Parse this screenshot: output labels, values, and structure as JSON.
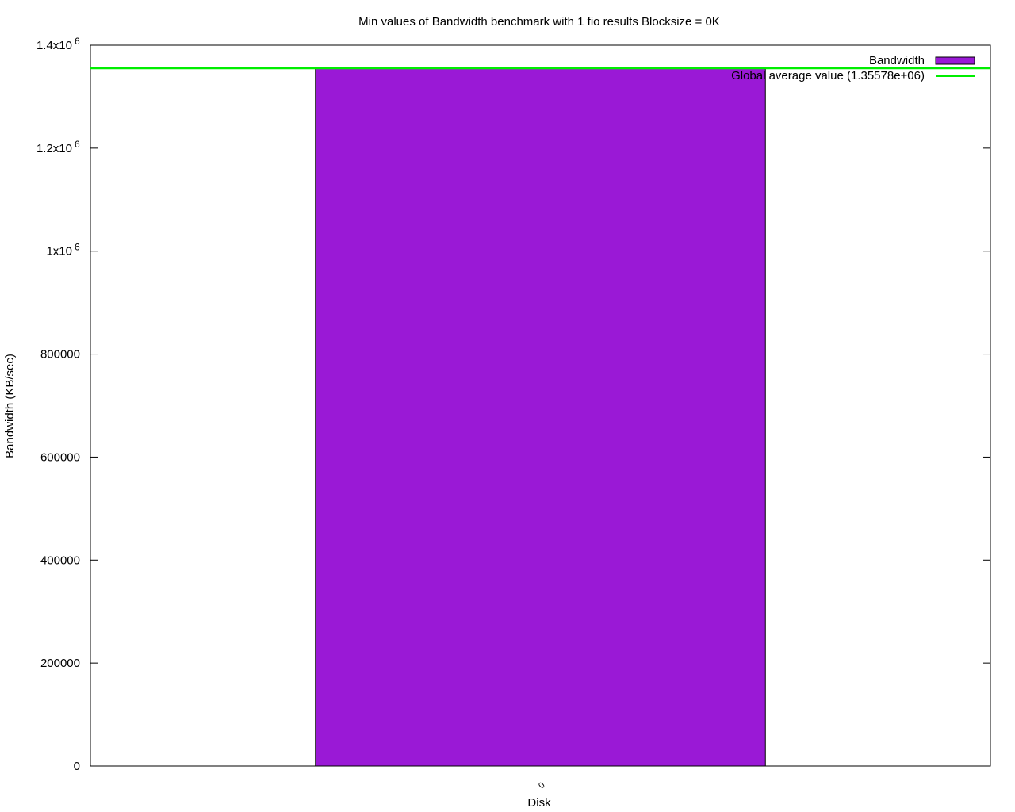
{
  "chart_data": {
    "type": "bar",
    "title": "Min values of Bandwidth benchmark with 1 fio results  Blocksize = 0K",
    "xlabel": "Disk",
    "ylabel": "Bandwidth (KB/sec)",
    "categories": [
      "0"
    ],
    "series": [
      {
        "name": "Bandwidth",
        "values": [
          1355780
        ],
        "color": "#9a19d6"
      }
    ],
    "reference_line": {
      "name": "Global average value (1.35578e+06)",
      "value": 1355780,
      "color": "#00ee00"
    },
    "ylim": [
      0,
      1400000
    ],
    "yticks": [
      {
        "value": 0,
        "label": "0"
      },
      {
        "value": 200000,
        "label": "200000"
      },
      {
        "value": 400000,
        "label": "400000"
      },
      {
        "value": 600000,
        "label": "600000"
      },
      {
        "value": 800000,
        "label": "800000"
      },
      {
        "value": 1000000,
        "label": "1x10",
        "exp": "6"
      },
      {
        "value": 1200000,
        "label": "1.2x10",
        "exp": "6"
      },
      {
        "value": 1400000,
        "label": "1.4x10",
        "exp": "6"
      }
    ],
    "grid": false,
    "legend_position": "top-right"
  }
}
